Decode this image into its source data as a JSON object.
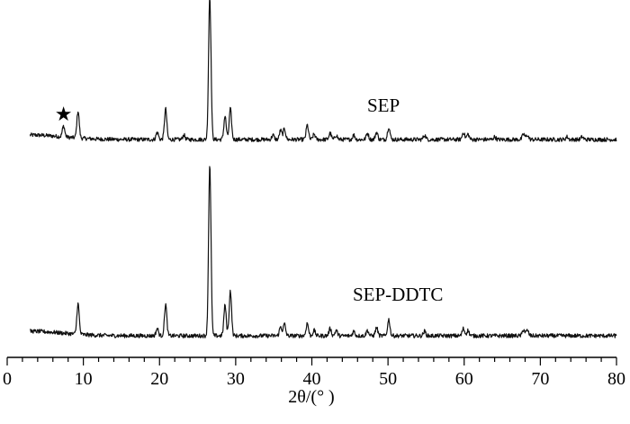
{
  "chart_data": {
    "type": "line",
    "title": "",
    "xlabel": "2θ/(°  )",
    "ylabel": "",
    "xlim": [
      0,
      80
    ],
    "x_ticks": [
      0,
      10,
      20,
      30,
      40,
      50,
      60,
      70,
      80
    ],
    "x_minor_step": 2,
    "grid": false,
    "legend": "none",
    "series": [
      {
        "name": "SEP",
        "offset": 1,
        "baseline": 0.05,
        "peaks": [
          {
            "x": 7.4,
            "h": 0.12
          },
          {
            "x": 9.3,
            "h": 0.3
          },
          {
            "x": 19.7,
            "h": 0.08
          },
          {
            "x": 20.8,
            "h": 0.34
          },
          {
            "x": 23.2,
            "h": 0.05
          },
          {
            "x": 26.6,
            "h": 1.6
          },
          {
            "x": 28.6,
            "h": 0.26
          },
          {
            "x": 29.3,
            "h": 0.34
          },
          {
            "x": 34.9,
            "h": 0.05
          },
          {
            "x": 35.9,
            "h": 0.1
          },
          {
            "x": 36.4,
            "h": 0.12
          },
          {
            "x": 39.4,
            "h": 0.16
          },
          {
            "x": 40.3,
            "h": 0.06
          },
          {
            "x": 42.4,
            "h": 0.07
          },
          {
            "x": 43.2,
            "h": 0.05
          },
          {
            "x": 45.5,
            "h": 0.05
          },
          {
            "x": 47.3,
            "h": 0.07
          },
          {
            "x": 48.5,
            "h": 0.08
          },
          {
            "x": 50.1,
            "h": 0.14
          },
          {
            "x": 54.8,
            "h": 0.05
          },
          {
            "x": 59.9,
            "h": 0.08
          },
          {
            "x": 60.5,
            "h": 0.06
          },
          {
            "x": 64.0,
            "h": 0.03
          },
          {
            "x": 67.8,
            "h": 0.06
          },
          {
            "x": 68.3,
            "h": 0.05
          },
          {
            "x": 73.5,
            "h": 0.03
          },
          {
            "x": 75.5,
            "h": 0.03
          }
        ]
      },
      {
        "name": "SEP-DDTC",
        "offset": 0,
        "baseline": 0.05,
        "peaks": [
          {
            "x": 9.3,
            "h": 0.34
          },
          {
            "x": 19.7,
            "h": 0.08
          },
          {
            "x": 20.8,
            "h": 0.35
          },
          {
            "x": 26.6,
            "h": 1.9
          },
          {
            "x": 28.6,
            "h": 0.34
          },
          {
            "x": 29.3,
            "h": 0.5
          },
          {
            "x": 35.9,
            "h": 0.1
          },
          {
            "x": 36.4,
            "h": 0.13
          },
          {
            "x": 39.4,
            "h": 0.14
          },
          {
            "x": 40.3,
            "h": 0.06
          },
          {
            "x": 42.4,
            "h": 0.08
          },
          {
            "x": 43.2,
            "h": 0.06
          },
          {
            "x": 45.5,
            "h": 0.05
          },
          {
            "x": 47.3,
            "h": 0.06
          },
          {
            "x": 48.5,
            "h": 0.09
          },
          {
            "x": 50.1,
            "h": 0.18
          },
          {
            "x": 54.8,
            "h": 0.05
          },
          {
            "x": 59.9,
            "h": 0.08
          },
          {
            "x": 60.5,
            "h": 0.06
          },
          {
            "x": 67.8,
            "h": 0.07
          },
          {
            "x": 68.3,
            "h": 0.06
          }
        ]
      }
    ],
    "annotations": [
      {
        "symbol": "★",
        "x": 7.4,
        "series": "SEP"
      }
    ]
  }
}
